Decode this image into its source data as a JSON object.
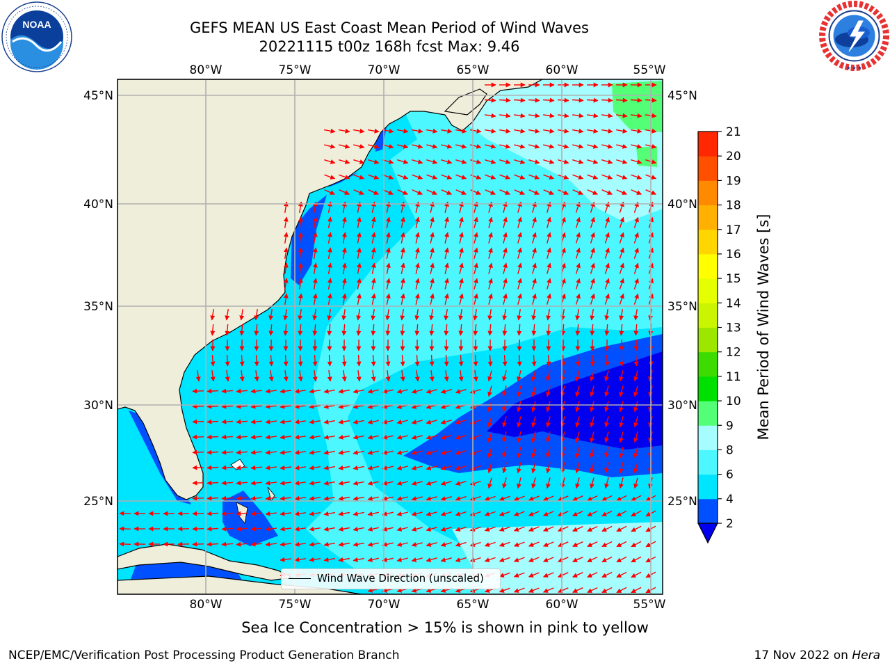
{
  "header": {
    "title_line1": "GEFS MEAN US East Coast Mean Period of Wind Waves",
    "title_line2": "20221115 t00z 168h fcst   Max: 9.46"
  },
  "logos": {
    "left": {
      "name": "noaa-logo",
      "text": "NOAA"
    },
    "right": {
      "name": "nws-logo",
      "text": "NATIONAL WEATHER SERVICE"
    }
  },
  "map": {
    "lon_labels": [
      "80°W",
      "75°W",
      "70°W",
      "65°W",
      "60°W",
      "55°W"
    ],
    "lat_labels": [
      "45°N",
      "40°N",
      "35°N",
      "30°N",
      "25°N"
    ],
    "land_color": "#efeedb",
    "arrow_color": "#ff0000",
    "grid_color": "#b0b0b0",
    "legend": "Wind Wave Direction (unscaled)"
  },
  "colorbar": {
    "label": "Mean Period of Wind Waves [s]",
    "ticks": [
      "2",
      "4",
      "6",
      "8",
      "9",
      "10",
      "11",
      "12",
      "13",
      "14",
      "15",
      "16",
      "17",
      "18",
      "19",
      "20",
      "21"
    ],
    "colors": [
      "#0050ff",
      "#00e5ff",
      "#4cf7ff",
      "#a5fdff",
      "#52ff77",
      "#00e000",
      "#3cdc00",
      "#9ce600",
      "#c9f500",
      "#e6ff00",
      "#ffff00",
      "#ffd600",
      "#ffb000",
      "#ff8a00",
      "#ff5000",
      "#ff2800",
      "#ff0000"
    ],
    "under_color": "#0000ee"
  },
  "footnote": "Sea Ice Concentration > 15% is shown in pink to yellow",
  "credits": {
    "left": "NCEP/EMC/Verification Post Processing Product Generation Branch",
    "right_date": "17 Nov 2022 on ",
    "right_machine": "Hera"
  }
}
